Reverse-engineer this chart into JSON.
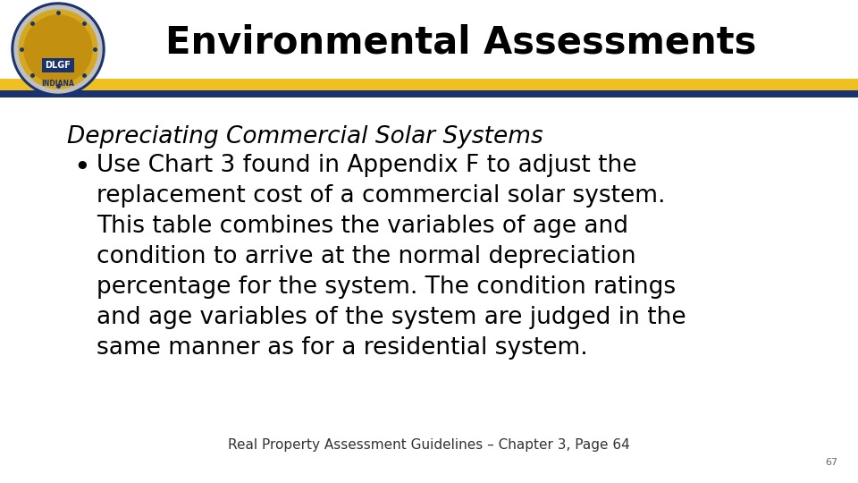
{
  "title": "Environmental Assessments",
  "subtitle": "Depreciating Commercial Solar Systems",
  "bullet_lines": [
    "Use Chart 3 found in Appendix F to adjust the",
    "replacement cost of a commercial solar system.",
    "This table combines the variables of age and",
    "condition to arrive at the normal depreciation",
    "percentage for the system. The condition ratings",
    "and age variables of the system are judged in the",
    "same manner as for a residential system."
  ],
  "footer": "Real Property Assessment Guidelines – Chapter 3, Page 64",
  "page_number": "67",
  "bg_color": "#ffffff",
  "title_color": "#000000",
  "subtitle_color": "#000000",
  "body_color": "#000000",
  "footer_color": "#333333",
  "stripe_yellow": "#f0c020",
  "stripe_blue": "#1a3370",
  "title_fontsize": 30,
  "subtitle_fontsize": 19,
  "body_fontsize": 19,
  "footer_fontsize": 11
}
